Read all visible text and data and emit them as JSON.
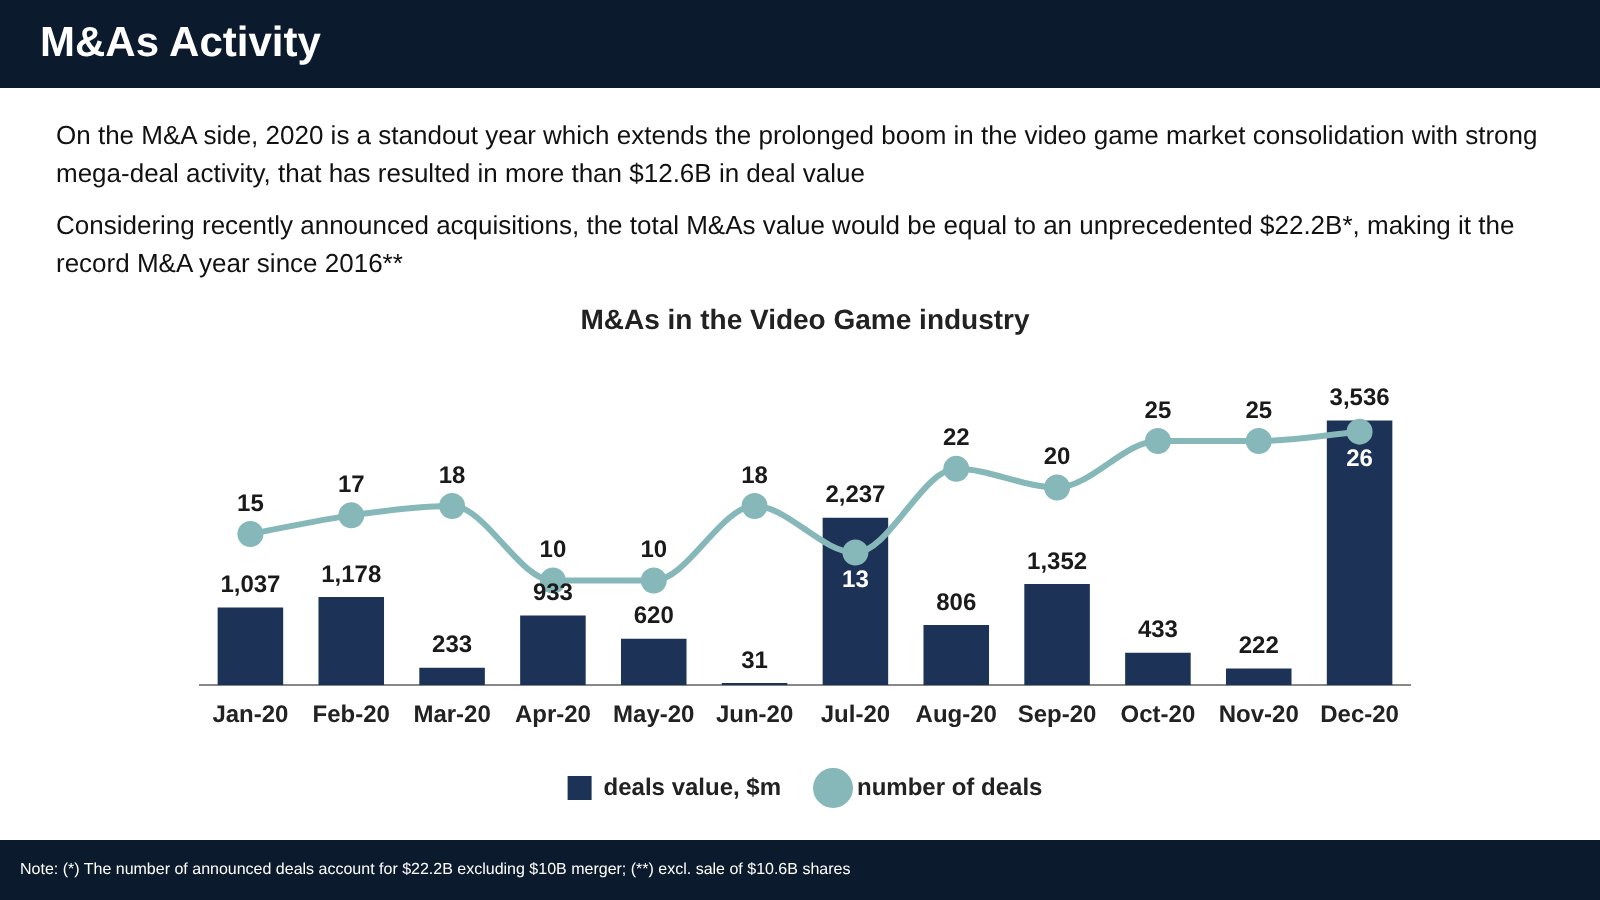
{
  "chart_data": {
    "type": "bar",
    "title": "M&As Activity",
    "subtitle": "M&As in the Video Game industry",
    "categories": [
      "Jan-20",
      "Feb-20",
      "Mar-20",
      "Apr-20",
      "May-20",
      "Jun-20",
      "Jul-20",
      "Aug-20",
      "Sep-20",
      "Oct-20",
      "Nov-20",
      "Dec-20"
    ],
    "series": [
      {
        "name": "deals value, $m",
        "color": "#1c3357",
        "values": [
          1037,
          1178,
          233,
          933,
          620,
          31,
          2237,
          806,
          1352,
          433,
          222,
          3536
        ],
        "value_labels": [
          "1,037",
          "1,178",
          "233",
          "933",
          "620",
          "31",
          "2,237",
          "806",
          "1,352",
          "433",
          "222",
          "3,536"
        ]
      },
      {
        "name": "number of deals",
        "type": "line",
        "axis": "y2",
        "color": "#86b8b9",
        "values": [
          15,
          17,
          18,
          10,
          10,
          18,
          13,
          22,
          20,
          25,
          25,
          26
        ],
        "value_labels": [
          "15",
          "17",
          "18",
          "10",
          "10",
          "18",
          "13",
          "22",
          "20",
          "25",
          "25",
          "26"
        ]
      }
    ],
    "tick_labels": "x",
    "grid": false,
    "legend": "bottom",
    "marker": "circle",
    "annotations": [
      "On the M&A side, 2020 is a standout year which extends the prolonged boom in the video game market consolidation with strong mega-deal activity, that has resulted in more than $12.6B in deal value",
      "Considering recently announced acquisitions, the total M&As value would be equal to an unprecedented $22.2B*, making it the record M&A year since 2016**",
      "Note: (*) The number of announced deals account for $22.2B excluding $10B merger; (**) excl. sale of $10.6B shares"
    ]
  }
}
